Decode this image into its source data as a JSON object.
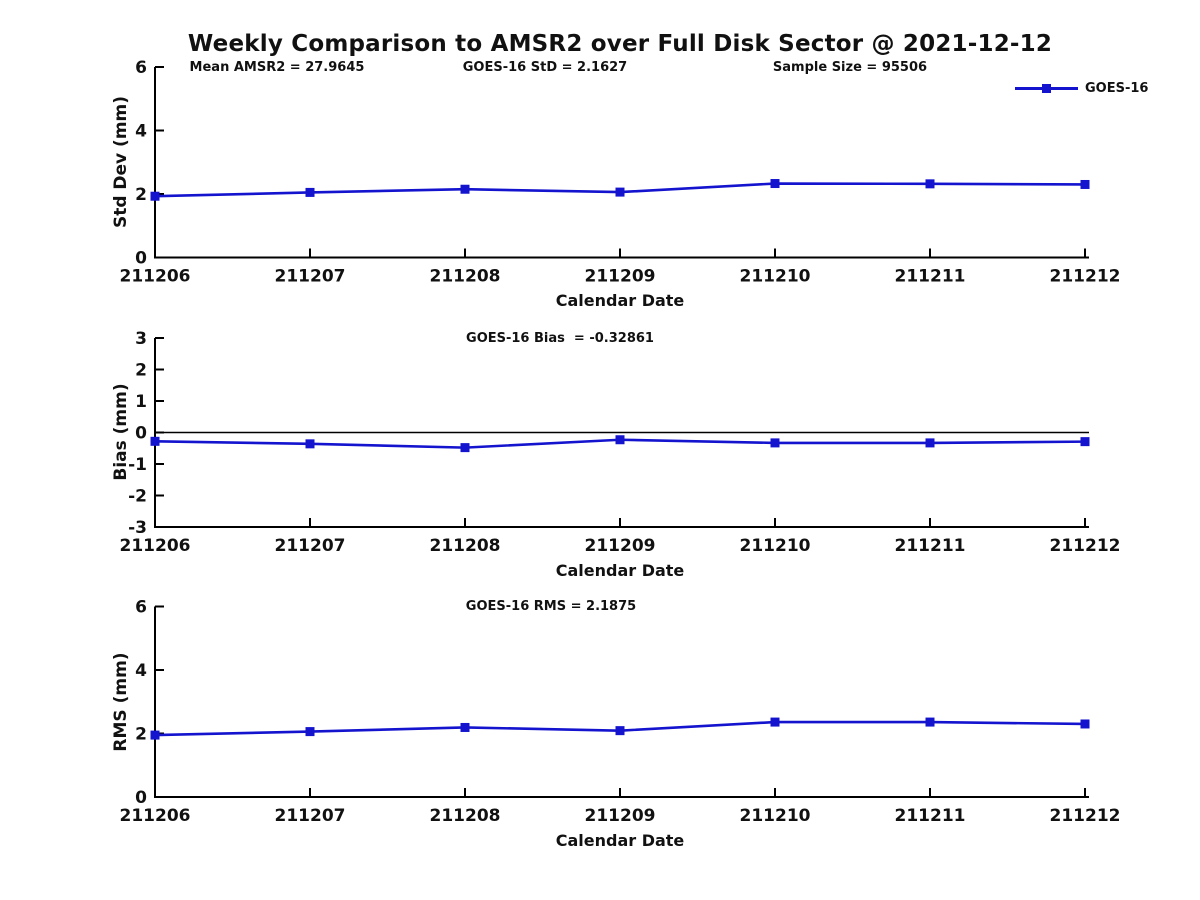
{
  "title": "Weekly Comparison to AMSR2 over Full Disk Sector @ 2021-12-12",
  "legend": {
    "label": "GOES-16"
  },
  "colors": {
    "series": "#1414cf",
    "axis": "#000000",
    "text": "#111111"
  },
  "chart_data": [
    {
      "type": "line",
      "categories": [
        "211206",
        "211207",
        "211208",
        "211209",
        "211210",
        "211211",
        "211212"
      ],
      "series": [
        {
          "name": "GOES-16",
          "values": [
            1.93,
            2.05,
            2.15,
            2.06,
            2.33,
            2.32,
            2.3
          ]
        }
      ],
      "ylabel": "Std Dev (mm)",
      "xlabel": "Calendar Date",
      "ylim": [
        0,
        6
      ],
      "yticks": [
        0,
        2,
        4,
        6
      ],
      "zero_line": false,
      "grid": false,
      "legend_position": "top-right",
      "annotations": [
        "Mean AMSR2 = 27.9645",
        "GOES-16 StD = 2.1627",
        "Sample Size = 95506"
      ]
    },
    {
      "type": "line",
      "categories": [
        "211206",
        "211207",
        "211208",
        "211209",
        "211210",
        "211211",
        "211212"
      ],
      "series": [
        {
          "name": "GOES-16",
          "values": [
            -0.28,
            -0.36,
            -0.48,
            -0.23,
            -0.33,
            -0.33,
            -0.29
          ]
        }
      ],
      "ylabel": "Bias (mm)",
      "xlabel": "Calendar Date",
      "ylim": [
        -3,
        3
      ],
      "yticks": [
        -3,
        -2,
        -1,
        0,
        1,
        2,
        3
      ],
      "zero_line": true,
      "grid": false,
      "annotations": [
        "GOES-16 Bias  = -0.32861"
      ]
    },
    {
      "type": "line",
      "categories": [
        "211206",
        "211207",
        "211208",
        "211209",
        "211210",
        "211211",
        "211212"
      ],
      "series": [
        {
          "name": "GOES-16",
          "values": [
            1.95,
            2.06,
            2.19,
            2.09,
            2.36,
            2.36,
            2.3
          ]
        }
      ],
      "ylabel": "RMS (mm)",
      "xlabel": "Calendar Date",
      "ylim": [
        0,
        6
      ],
      "yticks": [
        0,
        2,
        4,
        6
      ],
      "zero_line": false,
      "grid": false,
      "annotations": [
        "GOES-16 RMS = 2.1875"
      ]
    }
  ]
}
